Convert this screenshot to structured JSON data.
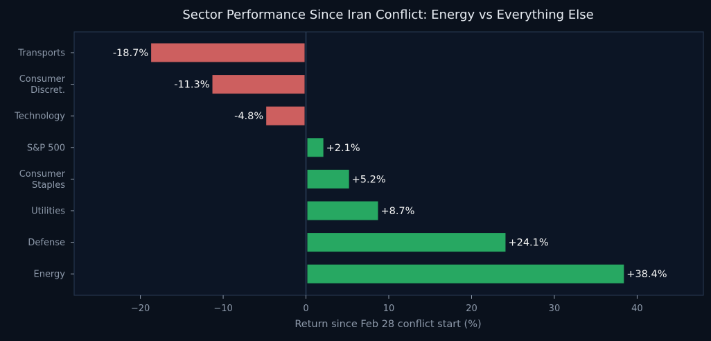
{
  "chart_data": {
    "type": "bar",
    "orientation": "horizontal",
    "title": "Sector Performance Since Iran Conflict: Energy vs Everything Else",
    "xlabel": "Return since Feb 28 conflict start (%)",
    "ylabel": "",
    "xlim": [
      -28,
      48
    ],
    "xticks": [
      -20,
      -10,
      0,
      10,
      20,
      30,
      40
    ],
    "xtick_labels": [
      "−20",
      "−10",
      "0",
      "10",
      "20",
      "30",
      "40"
    ],
    "categories": [
      [
        "Transports"
      ],
      [
        "Consumer",
        "Discret."
      ],
      [
        "Technology"
      ],
      [
        "S&P 500"
      ],
      [
        "Consumer",
        "Staples"
      ],
      [
        "Utilities"
      ],
      [
        "Defense"
      ],
      [
        "Energy"
      ]
    ],
    "values": [
      -18.7,
      -11.3,
      -4.8,
      2.1,
      5.2,
      8.7,
      24.1,
      38.4
    ],
    "value_labels": [
      "-18.7%",
      "-11.3%",
      "-4.8%",
      "+2.1%",
      "+5.2%",
      "+8.7%",
      "+24.1%",
      "+38.4%"
    ],
    "grid": false,
    "legend": "none",
    "colors": {
      "negative": "#cd5f5f",
      "positive": "#27a862",
      "background": "#0a111c",
      "plot_background": "#0c1525",
      "frame": "#24344c",
      "zero_line": "#2c3e58",
      "tick_text": "#8e9aab",
      "label_text": "#f2f2f2",
      "title_text": "#e8edf3"
    }
  }
}
